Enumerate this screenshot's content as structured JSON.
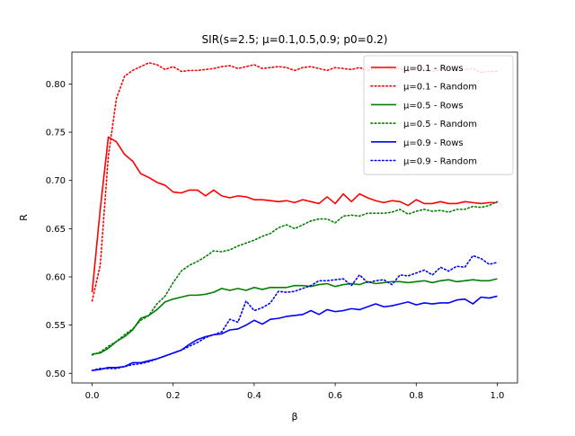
{
  "chart_data": {
    "type": "line",
    "title": "SIR(s=2.5; μ=0.1,0.5,0.9; p0=0.2)",
    "xlabel": "β",
    "ylabel": "R",
    "xlim": [
      -0.05,
      1.05
    ],
    "ylim": [
      0.49,
      0.833
    ],
    "xticks": [
      0.0,
      0.2,
      0.4,
      0.6,
      0.8,
      1.0
    ],
    "xtick_labels": [
      "0.0",
      "0.2",
      "0.4",
      "0.6",
      "0.8",
      "1.0"
    ],
    "yticks": [
      0.5,
      0.55,
      0.6,
      0.65,
      0.7,
      0.75,
      0.8
    ],
    "ytick_labels": [
      "0.50",
      "0.55",
      "0.60",
      "0.65",
      "0.70",
      "0.75",
      "0.80"
    ],
    "grid": false,
    "legend_position": "top-right",
    "x": [
      0.0,
      0.02,
      0.04,
      0.06,
      0.08,
      0.1,
      0.12,
      0.14,
      0.16,
      0.18,
      0.2,
      0.22,
      0.24,
      0.26,
      0.28,
      0.3,
      0.32,
      0.34,
      0.36,
      0.38,
      0.4,
      0.42,
      0.44,
      0.46,
      0.48,
      0.5,
      0.52,
      0.54,
      0.56,
      0.58,
      0.6,
      0.62,
      0.64,
      0.66,
      0.68,
      0.7,
      0.72,
      0.74,
      0.76,
      0.78,
      0.8,
      0.82,
      0.84,
      0.86,
      0.88,
      0.9,
      0.92,
      0.94,
      0.96,
      0.98,
      1.0
    ],
    "series": [
      {
        "name": "μ=0.1 - Rows",
        "color": "#ff0000",
        "style": "solid",
        "values": [
          0.584,
          0.67,
          0.745,
          0.74,
          0.727,
          0.72,
          0.707,
          0.703,
          0.698,
          0.695,
          0.688,
          0.687,
          0.69,
          0.69,
          0.684,
          0.69,
          0.684,
          0.682,
          0.684,
          0.683,
          0.68,
          0.68,
          0.679,
          0.678,
          0.679,
          0.677,
          0.68,
          0.678,
          0.676,
          0.683,
          0.676,
          0.686,
          0.678,
          0.686,
          0.682,
          0.679,
          0.677,
          0.679,
          0.678,
          0.674,
          0.68,
          0.676,
          0.676,
          0.678,
          0.676,
          0.676,
          0.678,
          0.677,
          0.676,
          0.677,
          0.677
        ]
      },
      {
        "name": "μ=0.1 - Random",
        "color": "#ff0000",
        "style": "dotted",
        "values": [
          0.575,
          0.612,
          0.725,
          0.785,
          0.808,
          0.814,
          0.818,
          0.822,
          0.82,
          0.815,
          0.818,
          0.813,
          0.814,
          0.814,
          0.815,
          0.816,
          0.818,
          0.819,
          0.816,
          0.818,
          0.82,
          0.816,
          0.817,
          0.818,
          0.817,
          0.814,
          0.817,
          0.818,
          0.816,
          0.814,
          0.817,
          0.816,
          0.815,
          0.817,
          0.814,
          0.816,
          0.817,
          0.815,
          0.816,
          0.813,
          0.817,
          0.815,
          0.813,
          0.815,
          0.816,
          0.814,
          0.815,
          0.816,
          0.812,
          0.813,
          0.813
        ]
      },
      {
        "name": "μ=0.5 - Rows",
        "color": "#008000",
        "style": "solid",
        "values": [
          0.52,
          0.521,
          0.526,
          0.533,
          0.538,
          0.545,
          0.557,
          0.56,
          0.566,
          0.574,
          0.577,
          0.579,
          0.581,
          0.581,
          0.582,
          0.584,
          0.588,
          0.586,
          0.588,
          0.586,
          0.589,
          0.587,
          0.589,
          0.589,
          0.589,
          0.591,
          0.591,
          0.59,
          0.592,
          0.593,
          0.59,
          0.592,
          0.593,
          0.592,
          0.595,
          0.593,
          0.594,
          0.595,
          0.595,
          0.594,
          0.595,
          0.596,
          0.594,
          0.596,
          0.597,
          0.595,
          0.596,
          0.597,
          0.596,
          0.596,
          0.598
        ]
      },
      {
        "name": "μ=0.5 - Random",
        "color": "#008000",
        "style": "dotted",
        "values": [
          0.519,
          0.522,
          0.528,
          0.533,
          0.54,
          0.546,
          0.555,
          0.56,
          0.572,
          0.58,
          0.594,
          0.606,
          0.612,
          0.616,
          0.621,
          0.627,
          0.626,
          0.628,
          0.632,
          0.635,
          0.638,
          0.642,
          0.645,
          0.651,
          0.654,
          0.65,
          0.654,
          0.658,
          0.66,
          0.66,
          0.656,
          0.663,
          0.664,
          0.663,
          0.666,
          0.666,
          0.666,
          0.667,
          0.67,
          0.665,
          0.668,
          0.67,
          0.668,
          0.669,
          0.667,
          0.67,
          0.67,
          0.673,
          0.672,
          0.674,
          0.678
        ]
      },
      {
        "name": "μ=0.9 - Rows",
        "color": "#0000ff",
        "style": "solid",
        "values": [
          0.503,
          0.504,
          0.506,
          0.506,
          0.507,
          0.511,
          0.511,
          0.513,
          0.515,
          0.518,
          0.521,
          0.524,
          0.53,
          0.535,
          0.538,
          0.54,
          0.541,
          0.545,
          0.546,
          0.55,
          0.555,
          0.551,
          0.556,
          0.557,
          0.559,
          0.56,
          0.561,
          0.565,
          0.561,
          0.566,
          0.564,
          0.565,
          0.567,
          0.566,
          0.569,
          0.572,
          0.569,
          0.57,
          0.572,
          0.574,
          0.571,
          0.573,
          0.572,
          0.573,
          0.573,
          0.576,
          0.577,
          0.572,
          0.579,
          0.578,
          0.58
        ]
      },
      {
        "name": "μ=0.9 - Random",
        "color": "#0000ff",
        "style": "dotted",
        "values": [
          0.503,
          0.505,
          0.505,
          0.505,
          0.507,
          0.509,
          0.51,
          0.512,
          0.515,
          0.518,
          0.521,
          0.524,
          0.528,
          0.532,
          0.537,
          0.54,
          0.543,
          0.556,
          0.553,
          0.575,
          0.565,
          0.568,
          0.573,
          0.585,
          0.584,
          0.585,
          0.588,
          0.591,
          0.596,
          0.596,
          0.597,
          0.598,
          0.591,
          0.602,
          0.594,
          0.596,
          0.597,
          0.592,
          0.602,
          0.601,
          0.604,
          0.607,
          0.602,
          0.61,
          0.606,
          0.611,
          0.61,
          0.622,
          0.619,
          0.613,
          0.615
        ]
      }
    ]
  }
}
